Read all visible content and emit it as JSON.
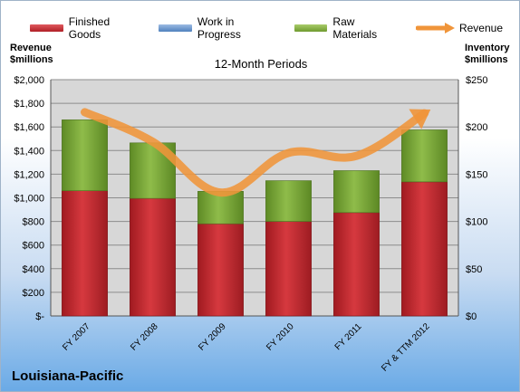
{
  "legend": {
    "finished": "Finished Goods",
    "wip": "Work in Progress",
    "raw": "Raw Materials",
    "revenue": "Revenue"
  },
  "colors": {
    "finished": "#c0272d",
    "wip": "#4f81bd",
    "raw": "#7fa838",
    "revenue": "#f0953a",
    "plot_bg": "#d7d7d7"
  },
  "left_axis_title": [
    "Revenue",
    "$millions"
  ],
  "right_axis_title": [
    "Inventory",
    "$millions"
  ],
  "company": "Louisiana-Pacific",
  "chart_data": {
    "type": "bar",
    "title": "12-Month Periods",
    "categories": [
      "FY 2007",
      "FY 2008",
      "FY 2009",
      "FY 2010",
      "FY 2011",
      "FY & TTM 2012"
    ],
    "series": [
      {
        "name": "Finished Goods",
        "values": [
          1060,
          995,
          780,
          800,
          875,
          1135
        ],
        "axis": "left",
        "stack": "inventory"
      },
      {
        "name": "Work in Progress",
        "values": [
          0,
          0,
          0,
          0,
          0,
          0
        ],
        "axis": "left",
        "stack": "inventory"
      },
      {
        "name": "Raw Materials",
        "values": [
          600,
          470,
          275,
          345,
          355,
          440
        ],
        "axis": "left",
        "stack": "inventory"
      },
      {
        "name": "Revenue",
        "type": "line",
        "values": [
          1725,
          1475,
          1045,
          1380,
          1355,
          1715
        ],
        "axis": "left"
      }
    ],
    "ylim_left": [
      0,
      2000
    ],
    "ylim_right": [
      0,
      250
    ],
    "yticks_left": [
      "$-",
      "$200",
      "$400",
      "$600",
      "$800",
      "$1,000",
      "$1,200",
      "$1,400",
      "$1,600",
      "$1,800",
      "$2,000"
    ],
    "yticks_right": [
      "$0",
      "$50",
      "$100",
      "$150",
      "$200",
      "$250"
    ],
    "grid": true,
    "legend_position": "top"
  }
}
